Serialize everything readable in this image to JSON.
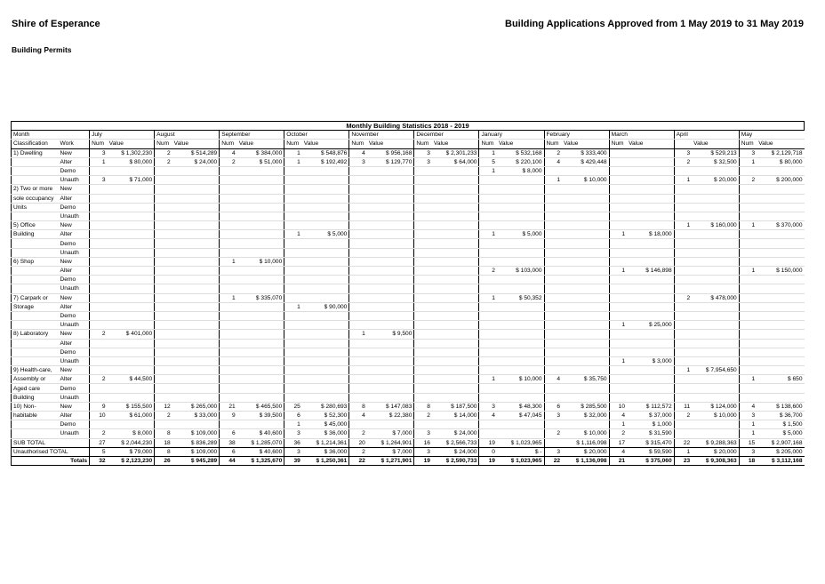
{
  "header": {
    "org": "Shire of Esperance",
    "report": "Building Applications Approved from 1 May 2019 to 31 May 2019",
    "subtitle": "Building Permits"
  },
  "table": {
    "title": "Monthly Building Statistics 2018 - 2019",
    "month_label": "Month",
    "classification_label": "Classification",
    "work_label": "Work",
    "months": [
      "July",
      "August",
      "September",
      "October",
      "November",
      "December",
      "January",
      "February",
      "March",
      "April",
      "May"
    ],
    "sub_headers": [
      [
        "Num",
        "Value"
      ],
      [
        "Num",
        "Value"
      ],
      [
        "Num",
        "Value"
      ],
      [
        "Num",
        "Value"
      ],
      [
        "Num",
        "Value"
      ],
      [
        "Num",
        "Value"
      ],
      [
        "Num",
        "Value"
      ],
      [
        "Num",
        "Value"
      ],
      [
        "Num",
        "Value"
      ],
      [
        null,
        "Value"
      ],
      [
        "Num",
        "Value"
      ]
    ],
    "rows": [
      {
        "month": "1) Dwelling",
        "work": "New",
        "cells": [
          [
            "3",
            "$ 1,302,230"
          ],
          [
            "2",
            "$ 514,289"
          ],
          [
            "4",
            "$ 384,000"
          ],
          [
            "1",
            "$ 548,876"
          ],
          [
            "4",
            "$ 956,168"
          ],
          [
            "3",
            "$ 2,301,233"
          ],
          [
            "1",
            "$ 532,168"
          ],
          [
            "2",
            "$ 333,400"
          ],
          null,
          [
            "3",
            "$ 529,213"
          ],
          [
            "3",
            "$ 2,129,718"
          ]
        ]
      },
      {
        "month": null,
        "work": "Alter",
        "cells": [
          [
            "1",
            "$ 80,000"
          ],
          [
            "2",
            "$ 24,000"
          ],
          [
            "2",
            "$ 51,000"
          ],
          [
            "1",
            "$ 192,492"
          ],
          [
            "3",
            "$ 129,770"
          ],
          [
            "3",
            "$ 64,000"
          ],
          [
            "5",
            "$ 220,100"
          ],
          [
            "4",
            "$ 429,448"
          ],
          null,
          [
            "2",
            "$ 32,500"
          ],
          [
            "1",
            "$ 80,000"
          ]
        ]
      },
      {
        "month": null,
        "work": "Demo",
        "cells": [
          null,
          null,
          null,
          null,
          null,
          null,
          [
            "1",
            "$ 8,000"
          ],
          null,
          null,
          null,
          null
        ]
      },
      {
        "month": null,
        "work": "Unauth",
        "cells": [
          [
            "3",
            "$ 71,000"
          ],
          null,
          null,
          null,
          null,
          null,
          null,
          [
            "1",
            "$ 10,000"
          ],
          null,
          [
            "1",
            "$ 20,000"
          ],
          [
            "2",
            "$ 200,000"
          ]
        ]
      },
      {
        "month": "2) Two or more",
        "work": "New",
        "cells": [
          null,
          null,
          null,
          null,
          null,
          null,
          null,
          null,
          null,
          null,
          null
        ]
      },
      {
        "month": "sole occupancy",
        "work": "Alter",
        "cells": [
          null,
          null,
          null,
          null,
          null,
          null,
          null,
          null,
          null,
          null,
          null
        ]
      },
      {
        "month": "Units",
        "work": "Demo",
        "cells": [
          null,
          null,
          null,
          null,
          null,
          null,
          null,
          null,
          null,
          null,
          null
        ]
      },
      {
        "month": null,
        "work": "Unauth",
        "cells": [
          null,
          null,
          null,
          null,
          null,
          null,
          null,
          null,
          null,
          null,
          null
        ]
      },
      {
        "month": "5) Office",
        "work": "New",
        "cells": [
          null,
          null,
          null,
          null,
          null,
          null,
          null,
          null,
          null,
          [
            "1",
            "$ 160,000"
          ],
          [
            "1",
            "$ 370,000"
          ]
        ]
      },
      {
        "month": "Building",
        "work": "Alter",
        "cells": [
          null,
          null,
          null,
          [
            "1",
            "$ 5,000"
          ],
          null,
          null,
          [
            "1",
            "$ 5,000"
          ],
          null,
          [
            "1",
            "$ 18,000"
          ],
          null,
          null
        ]
      },
      {
        "month": null,
        "work": "Demo",
        "cells": [
          null,
          null,
          null,
          null,
          null,
          null,
          null,
          null,
          null,
          null,
          null
        ]
      },
      {
        "month": null,
        "work": "Unauth",
        "cells": [
          null,
          null,
          null,
          null,
          null,
          null,
          null,
          null,
          null,
          null,
          null
        ]
      },
      {
        "month": "6) Shop",
        "work": "New",
        "cells": [
          null,
          null,
          [
            "1",
            "$ 10,000"
          ],
          null,
          null,
          null,
          null,
          null,
          null,
          null,
          null
        ]
      },
      {
        "month": null,
        "work": "Alter",
        "cells": [
          null,
          null,
          null,
          null,
          null,
          null,
          [
            "2",
            "$ 103,000"
          ],
          null,
          [
            "1",
            "$ 146,898"
          ],
          null,
          [
            "1",
            "$ 150,000"
          ]
        ]
      },
      {
        "month": null,
        "work": "Demo",
        "cells": [
          null,
          null,
          null,
          null,
          null,
          null,
          null,
          null,
          null,
          null,
          null
        ]
      },
      {
        "month": null,
        "work": "Unauth",
        "cells": [
          null,
          null,
          null,
          null,
          null,
          null,
          null,
          null,
          null,
          null,
          null
        ]
      },
      {
        "month": "7) Carpark or",
        "work": "New",
        "cells": [
          null,
          null,
          [
            "1",
            "$ 335,070"
          ],
          null,
          null,
          null,
          [
            "1",
            "$ 50,352"
          ],
          null,
          null,
          [
            "2",
            "$ 478,000"
          ],
          null
        ]
      },
      {
        "month": "Storage",
        "work": "Alter",
        "cells": [
          null,
          null,
          null,
          [
            "1",
            "$ 90,000"
          ],
          null,
          null,
          null,
          null,
          null,
          null,
          null
        ]
      },
      {
        "month": null,
        "work": "Demo",
        "cells": [
          null,
          null,
          null,
          null,
          null,
          null,
          null,
          null,
          null,
          null,
          null
        ]
      },
      {
        "month": null,
        "work": "Unauth",
        "cells": [
          null,
          null,
          null,
          null,
          null,
          null,
          null,
          null,
          [
            "1",
            "$ 25,000"
          ],
          null,
          null
        ]
      },
      {
        "month": "8) Laboratory",
        "work": "New",
        "cells": [
          [
            "2",
            "$ 401,000"
          ],
          null,
          null,
          null,
          [
            "1",
            "$ 9,500"
          ],
          null,
          null,
          null,
          null,
          null,
          null
        ]
      },
      {
        "month": null,
        "work": "Alter",
        "cells": [
          null,
          null,
          null,
          null,
          null,
          null,
          null,
          null,
          null,
          null,
          null
        ]
      },
      {
        "month": null,
        "work": "Demo",
        "cells": [
          null,
          null,
          null,
          null,
          null,
          null,
          null,
          null,
          null,
          null,
          null
        ]
      },
      {
        "month": null,
        "work": "Unauth",
        "cells": [
          null,
          null,
          null,
          null,
          null,
          null,
          null,
          null,
          [
            "1",
            "$ 3,000"
          ],
          null,
          null
        ]
      },
      {
        "month": "9) Health-care,",
        "work": "New",
        "cells": [
          null,
          null,
          null,
          null,
          null,
          null,
          null,
          null,
          null,
          [
            "1",
            "$ 7,954,650"
          ],
          null
        ]
      },
      {
        "month": "Assembly or",
        "work": "Alter",
        "cells": [
          [
            "2",
            "$ 44,500"
          ],
          null,
          null,
          null,
          null,
          null,
          [
            "1",
            "$ 10,000"
          ],
          [
            "4",
            "$ 35,750"
          ],
          null,
          null,
          [
            "1",
            "$ 650"
          ]
        ]
      },
      {
        "month": "Aged care",
        "work": "Demo",
        "cells": [
          null,
          null,
          null,
          null,
          null,
          null,
          null,
          null,
          null,
          null,
          null
        ]
      },
      {
        "month": "Building",
        "work": "Unauth",
        "cells": [
          null,
          null,
          null,
          null,
          null,
          null,
          null,
          null,
          null,
          null,
          null
        ]
      },
      {
        "month": "10) Non-",
        "work": "New",
        "cells": [
          [
            "9",
            "$ 155,500"
          ],
          [
            "12",
            "$ 265,000"
          ],
          [
            "21",
            "$ 465,500"
          ],
          [
            "25",
            "$ 280,693"
          ],
          [
            "8",
            "$ 147,083"
          ],
          [
            "8",
            "$ 187,500"
          ],
          [
            "3",
            "$ 48,300"
          ],
          [
            "6",
            "$ 285,500"
          ],
          [
            "10",
            "$ 112,572"
          ],
          [
            "11",
            "$ 124,000"
          ],
          [
            "4",
            "$ 138,600"
          ]
        ]
      },
      {
        "month": "habitable",
        "work": "Alter",
        "cells": [
          [
            "10",
            "$ 61,000"
          ],
          [
            "2",
            "$ 33,000"
          ],
          [
            "9",
            "$ 39,500"
          ],
          [
            "6",
            "$ 52,300"
          ],
          [
            "4",
            "$ 22,380"
          ],
          [
            "2",
            "$ 14,000"
          ],
          [
            "4",
            "$ 47,045"
          ],
          [
            "3",
            "$ 32,000"
          ],
          [
            "4",
            "$ 37,000"
          ],
          [
            "2",
            "$ 10,000"
          ],
          [
            "3",
            "$ 36,700"
          ]
        ]
      },
      {
        "month": null,
        "work": "Demo",
        "cells": [
          null,
          null,
          null,
          [
            "1",
            "$ 45,000"
          ],
          null,
          null,
          null,
          null,
          [
            "1",
            "$ 1,000"
          ],
          null,
          [
            "1",
            "$ 1,500"
          ]
        ]
      },
      {
        "month": null,
        "work": "Unauth",
        "cells": [
          [
            "2",
            "$ 8,000"
          ],
          [
            "8",
            "$ 109,000"
          ],
          [
            "6",
            "$ 40,600"
          ],
          [
            "3",
            "$ 36,000"
          ],
          [
            "2",
            "$ 7,000"
          ],
          [
            "3",
            "$ 24,000"
          ],
          null,
          [
            "2",
            "$ 10,000"
          ],
          [
            "2",
            "$ 31,590"
          ],
          null,
          [
            "1",
            "$ 5,000"
          ]
        ]
      }
    ],
    "summary_rows": [
      {
        "label": "SUB TOTAL",
        "cells": [
          [
            "27",
            "$ 2,044,230"
          ],
          [
            "18",
            "$ 836,289"
          ],
          [
            "38",
            "$ 1,285,070"
          ],
          [
            "36",
            "$ 1,214,361"
          ],
          [
            "20",
            "$ 1,264,901"
          ],
          [
            "16",
            "$ 2,566,733"
          ],
          [
            "19",
            "$ 1,023,965"
          ],
          [
            null,
            "$ 1,116,098"
          ],
          [
            "17",
            "$ 315,470"
          ],
          [
            "22",
            "$ 9,288,363"
          ],
          [
            "15",
            "$ 2,907,168"
          ]
        ]
      },
      {
        "label": "Unauthorised TOTAL",
        "cells": [
          [
            "5",
            "$ 79,000"
          ],
          [
            "8",
            "$ 109,000"
          ],
          [
            "6",
            "$ 40,600"
          ],
          [
            "3",
            "$ 36,000"
          ],
          [
            "2",
            "$ 7,000"
          ],
          [
            "3",
            "$ 24,000"
          ],
          [
            "0",
            "$ -"
          ],
          [
            "3",
            "$ 20,000"
          ],
          [
            "4",
            "$ 59,590"
          ],
          [
            "1",
            "$ 20,000"
          ],
          [
            "3",
            "$ 205,000"
          ]
        ]
      },
      {
        "label": "Totals",
        "cells": [
          [
            "32",
            "$ 2,123,230"
          ],
          [
            "26",
            "$ 945,289"
          ],
          [
            "44",
            "$ 1,325,670"
          ],
          [
            "39",
            "$ 1,250,361"
          ],
          [
            "22",
            "$ 1,271,901"
          ],
          [
            "19",
            "$ 2,590,733"
          ],
          [
            "19",
            "$ 1,023,965"
          ],
          [
            "22",
            "$ 1,136,098"
          ],
          [
            "21",
            "$ 375,060"
          ],
          [
            "23",
            "$ 9,308,363"
          ],
          [
            "18",
            "$ 3,112,168"
          ]
        ]
      }
    ]
  }
}
